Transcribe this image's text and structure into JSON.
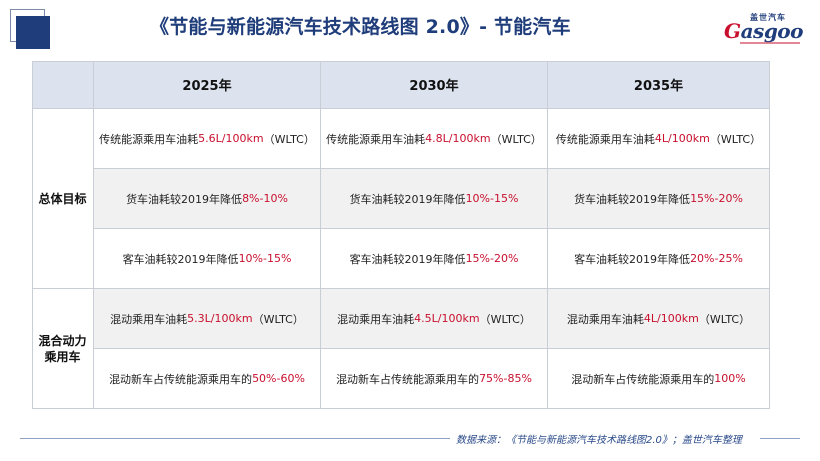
{
  "title": "《节能与新能源汽车技术路线图 2.0》- 节能汽车",
  "logo": {
    "cn": "盖世汽车",
    "en_prefix": "G",
    "en_rest": "asgoo"
  },
  "watermark": "Gasgoo",
  "table": {
    "headers": [
      "2025年",
      "2030年",
      "2035年"
    ],
    "group1_label": "总体目标",
    "group2_label": "混合动力乘用车",
    "rows": [
      [
        {
          "pre": "传统能源乘用车油耗",
          "red": "5.6L/100km",
          "post": "（WLTC）"
        },
        {
          "pre": "传统能源乘用车油耗",
          "red": "4.8L/100km",
          "post": "（WLTC）"
        },
        {
          "pre": "传统能源乘用车油耗",
          "red": "4L/100km",
          "post": "（WLTC）"
        }
      ],
      [
        {
          "pre": "货车油耗较2019年降低",
          "red": "8%-10%",
          "post": ""
        },
        {
          "pre": "货车油耗较2019年降低",
          "red": "10%-15%",
          "post": ""
        },
        {
          "pre": "货车油耗较2019年降低",
          "red": "15%-20%",
          "post": ""
        }
      ],
      [
        {
          "pre": "客车油耗较2019年降低",
          "red": "10%-15%",
          "post": ""
        },
        {
          "pre": "客车油耗较2019年降低",
          "red": "15%-20%",
          "post": ""
        },
        {
          "pre": "客车油耗较2019年降低",
          "red": "20%-25%",
          "post": ""
        }
      ],
      [
        {
          "pre": "混动乘用车油耗",
          "red": "5.3L/100km",
          "post": "（WLTC）"
        },
        {
          "pre": "混动乘用车油耗",
          "red": "4.5L/100km",
          "post": "（WLTC）"
        },
        {
          "pre": "混动乘用车油耗",
          "red": "4L/100km",
          "post": "（WLTC）"
        }
      ],
      [
        {
          "pre": "混动新车占传统能源乘用车的",
          "red": "50%-60%",
          "post": ""
        },
        {
          "pre": "混动新车占传统能源乘用车的",
          "red": "75%-85%",
          "post": ""
        },
        {
          "pre": "混动新车占传统能源乘用车的",
          "red": "100%",
          "post": ""
        }
      ]
    ]
  },
  "source": "数据来源：《节能与新能源汽车技术路线图2.0》；盖世汽车整理"
}
